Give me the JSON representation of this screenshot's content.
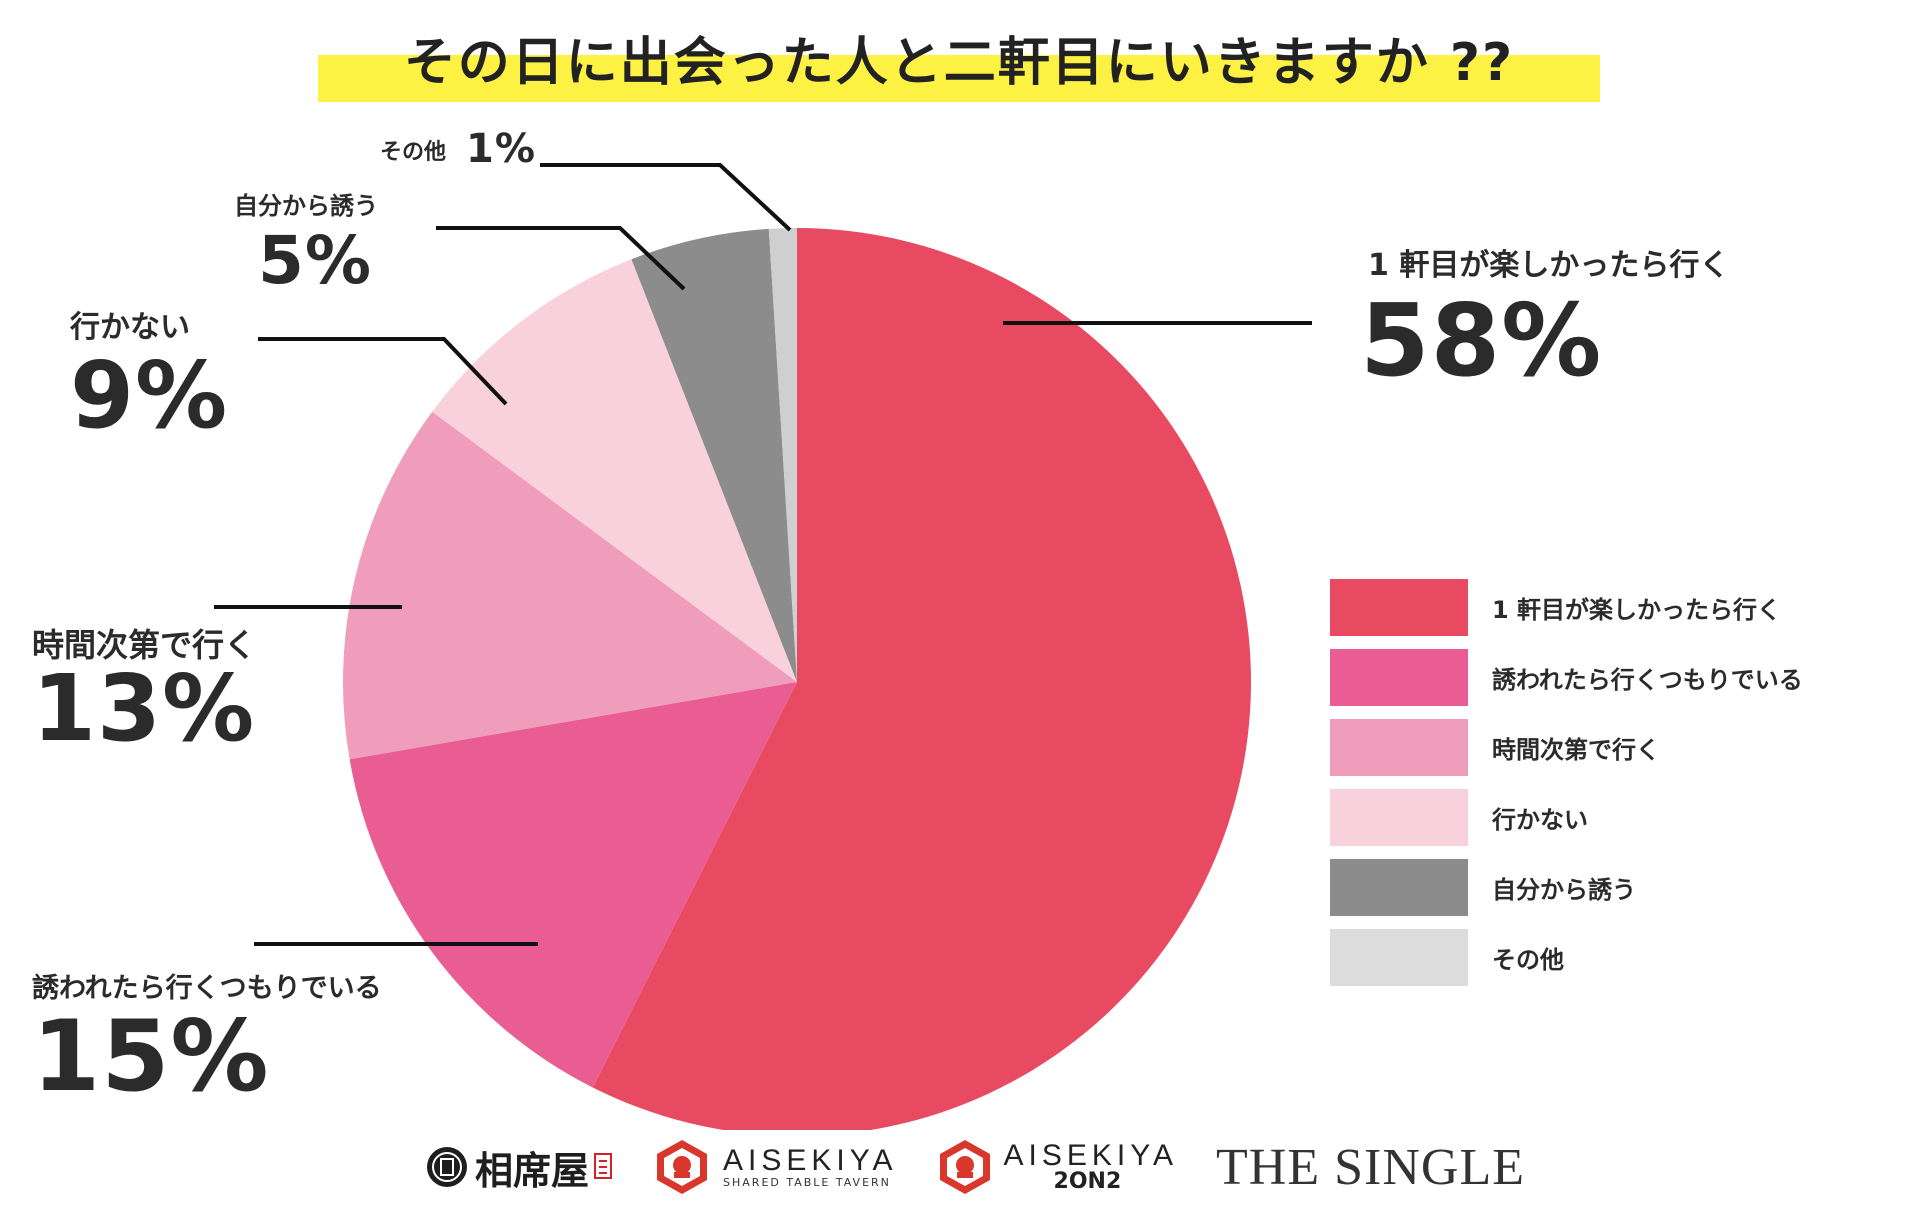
{
  "title": "その日に出会った人と二軒目にいきますか ??",
  "chart_data": {
    "type": "pie",
    "title": "その日に出会った人と二軒目にいきますか ??",
    "start": "12 o'clock",
    "direction": "clockwise",
    "slices": [
      {
        "label": "1 軒目が楽しかったら行く",
        "value": 58,
        "pct_label": "58%",
        "color": "#e84a62"
      },
      {
        "label": "誘われたら行くつもりでいる",
        "value": 15,
        "pct_label": "15%",
        "color": "#e95d93"
      },
      {
        "label": "時間次第で行く",
        "value": 13,
        "pct_label": "13%",
        "color": "#f09cbb"
      },
      {
        "label": "行かない",
        "value": 9,
        "pct_label": "9%",
        "color": "#f8d1dd"
      },
      {
        "label": "自分から誘う",
        "value": 5,
        "pct_label": "5%",
        "color": "#8c8c8c"
      },
      {
        "label": "その他",
        "value": 1,
        "pct_label": "1%",
        "color": "#cfcfcf"
      }
    ],
    "legend": {
      "placement": "right",
      "items": [
        {
          "label": "1 軒目が楽しかったら行く",
          "color": "#e84a62"
        },
        {
          "label": "誘われたら行くつもりでいる",
          "color": "#e95d93"
        },
        {
          "label": "時間次第で行く",
          "color": "#f09cbb"
        },
        {
          "label": "行かない",
          "color": "#f8d1dd"
        },
        {
          "label": "自分から誘う",
          "color": "#8c8c8c"
        },
        {
          "label": "その他",
          "color": "#dcdcdc"
        }
      ]
    }
  },
  "logos": {
    "aisekiya_jp": "相席屋",
    "aisekiya_main": "AISEKIYA",
    "aisekiya_sub": "SHARED TABLE TAVERN",
    "aisekiya2_main": "AISEKIYA",
    "aisekiya2_sub": "2ON2",
    "single": "THE SINGLE"
  }
}
